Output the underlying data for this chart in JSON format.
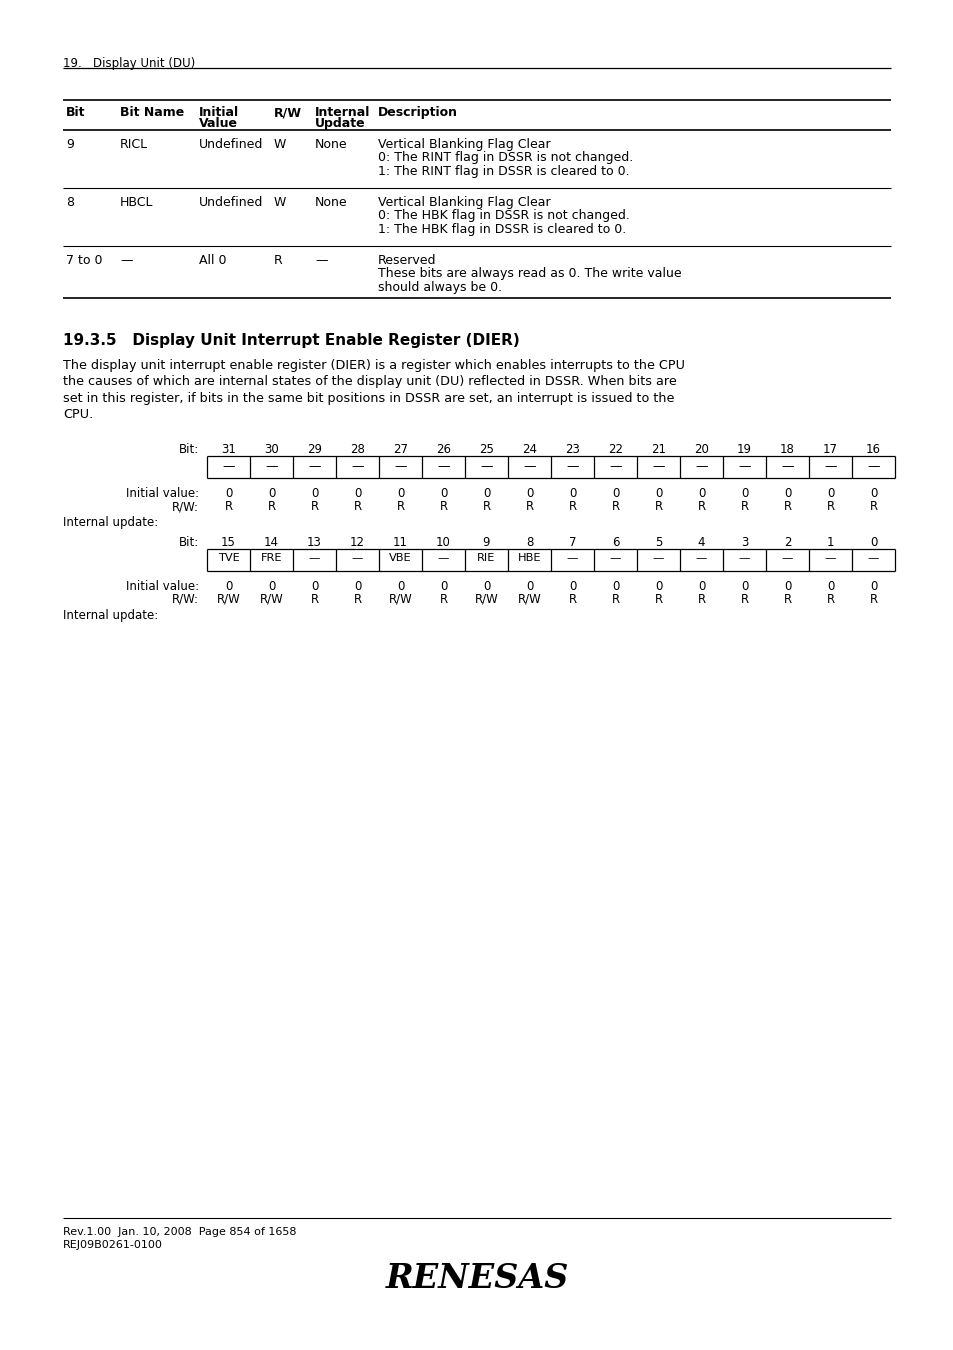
{
  "page_header": "19.   Display Unit (DU)",
  "section_title": "19.3.5   Display Unit Interrupt Enable Register (DIER)",
  "body_text": "The display unit interrupt enable register (DIER) is a register which enables interrupts to the CPU\nthe causes of which are internal states of the display unit (DU) reflected in DSSR. When bits are\nset in this register, if bits in the same bit positions in DSSR are set, an interrupt is issued to the\nCPU.",
  "table_rows": [
    [
      "9",
      "RICL",
      "Undefined",
      "W",
      "None",
      "Vertical Blanking Flag Clear\n0: The RINT flag in DSSR is not changed.\n1: The RINT flag in DSSR is cleared to 0."
    ],
    [
      "8",
      "HBCL",
      "Undefined",
      "W",
      "None",
      "Vertical Blanking Flag Clear\n0: The HBK flag in DSSR is not changed.\n1: The HBK flag in DSSR is cleared to 0."
    ],
    [
      "7 to 0",
      "—",
      "All 0",
      "R",
      "—",
      "Reserved\nThese bits are always read as 0. The write value\nshould always be 0."
    ]
  ],
  "reg_upper_bits": [
    "31",
    "30",
    "29",
    "28",
    "27",
    "26",
    "25",
    "24",
    "23",
    "22",
    "21",
    "20",
    "19",
    "18",
    "17",
    "16"
  ],
  "reg_upper_labels": [
    "—",
    "—",
    "—",
    "—",
    "—",
    "—",
    "—",
    "—",
    "—",
    "—",
    "—",
    "—",
    "—",
    "—",
    "—",
    "—"
  ],
  "reg_upper_init": [
    "0",
    "0",
    "0",
    "0",
    "0",
    "0",
    "0",
    "0",
    "0",
    "0",
    "0",
    "0",
    "0",
    "0",
    "0",
    "0"
  ],
  "reg_upper_rw": [
    "R",
    "R",
    "R",
    "R",
    "R",
    "R",
    "R",
    "R",
    "R",
    "R",
    "R",
    "R",
    "R",
    "R",
    "R",
    "R"
  ],
  "reg_lower_bits": [
    "15",
    "14",
    "13",
    "12",
    "11",
    "10",
    "9",
    "8",
    "7",
    "6",
    "5",
    "4",
    "3",
    "2",
    "1",
    "0"
  ],
  "reg_lower_labels": [
    "TVE",
    "FRE",
    "—",
    "—",
    "VBE",
    "—",
    "RIE",
    "HBE",
    "—",
    "—",
    "—",
    "—",
    "—",
    "—",
    "—",
    "—"
  ],
  "reg_lower_init": [
    "0",
    "0",
    "0",
    "0",
    "0",
    "0",
    "0",
    "0",
    "0",
    "0",
    "0",
    "0",
    "0",
    "0",
    "0",
    "0"
  ],
  "reg_lower_rw": [
    "R/W",
    "R/W",
    "R",
    "R",
    "R/W",
    "R",
    "R/W",
    "R/W",
    "R",
    "R",
    "R",
    "R",
    "R",
    "R",
    "R",
    "R"
  ],
  "footer_left": "Rev.1.00  Jan. 10, 2008  Page 854 of 1658\nREJ09B0261-0100",
  "bg_color": "#ffffff",
  "text_color": "#000000"
}
